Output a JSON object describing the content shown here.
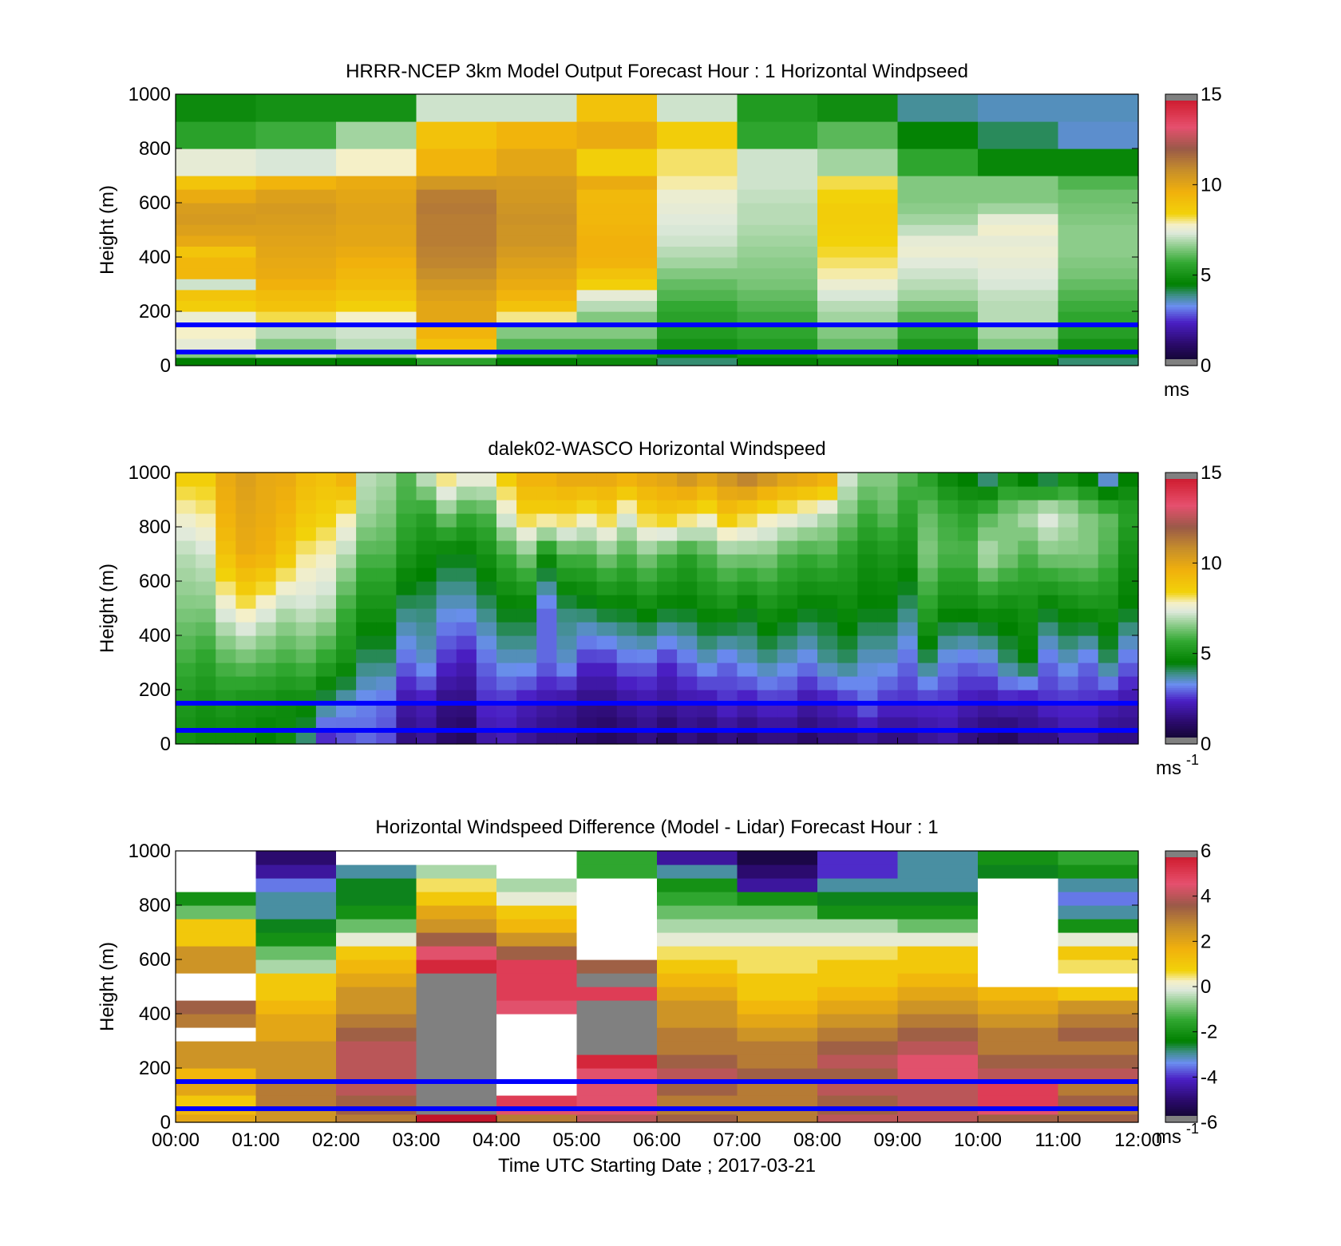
{
  "figure": {
    "x_tick_labels": [
      "00:00",
      "01:00",
      "02:00",
      "03:00",
      "04:00",
      "05:00",
      "06:00",
      "07:00",
      "08:00",
      "09:00",
      "10:00",
      "11:00",
      "12:00"
    ],
    "x_label": "Time UTC  Starting Date ; 2017-03-21"
  },
  "chart_data": [
    {
      "type": "heatmap",
      "title": "HRRR-NCEP 3km Model Output   Forecast Hour : 1 Horizontal Windpseed",
      "ylabel": "Height (m)",
      "ylim": [
        0,
        1000
      ],
      "yticks": [
        0,
        200,
        400,
        600,
        800,
        1000
      ],
      "colorbar": {
        "range": [
          0,
          15
        ],
        "ticks": [
          0,
          5,
          10,
          15
        ],
        "unit": "ms",
        "exponent": ""
      },
      "reference_lines_m": [
        150,
        50
      ],
      "time_start": "00:00",
      "time_step_hours": 1,
      "level_tops_m": [
        30,
        60,
        100,
        150,
        200,
        240,
        280,
        320,
        360,
        400,
        440,
        480,
        520,
        560,
        600,
        650,
        700,
        800,
        900,
        1000
      ],
      "values": [
        [
          4.5,
          6.5,
          7.5,
          7.8,
          7.6,
          8.6,
          8.9,
          7.2,
          9.4,
          9.4,
          8.9,
          9.9,
          10.2,
          10.4,
          10.3,
          9.8,
          8.9,
          7.5,
          5.5,
          4.8
        ],
        [
          4.5,
          7.0,
          6.5,
          7.0,
          8.2,
          9.0,
          9.2,
          9.6,
          9.8,
          9.9,
          10.0,
          10.1,
          10.2,
          10.3,
          10.4,
          10.2,
          9.5,
          7.3,
          5.8,
          5.0
        ],
        [
          4.5,
          6.5,
          7.0,
          7.2,
          7.8,
          8.5,
          8.9,
          9.2,
          9.4,
          9.6,
          9.8,
          10.0,
          10.0,
          10.1,
          10.1,
          10.0,
          9.8,
          7.8,
          6.8,
          5.0
        ],
        [
          5.5,
          7.5,
          9.0,
          9.5,
          10.0,
          10.0,
          10.2,
          10.5,
          10.8,
          11.0,
          11.1,
          11.2,
          11.2,
          11.2,
          11.3,
          11.2,
          10.5,
          9.5,
          9.0,
          7.2
        ],
        [
          4.5,
          6.0,
          6.0,
          6.5,
          8.0,
          9.0,
          9.5,
          9.8,
          10.0,
          10.2,
          10.4,
          10.6,
          10.6,
          10.7,
          10.6,
          10.5,
          10.4,
          10.0,
          9.5,
          7.2
        ],
        [
          4.8,
          5.5,
          6.0,
          6.5,
          6.5,
          7.0,
          7.5,
          8.5,
          9.0,
          9.5,
          9.6,
          9.6,
          9.5,
          9.4,
          9.4,
          9.3,
          9.8,
          8.5,
          9.8,
          9.0
        ],
        [
          4.0,
          4.6,
          5.0,
          5.3,
          5.5,
          5.7,
          6.0,
          6.2,
          6.5,
          6.8,
          7.0,
          7.2,
          7.3,
          7.4,
          7.5,
          7.6,
          7.9,
          8.1,
          8.6,
          7.2
        ],
        [
          4.6,
          5.0,
          5.3,
          5.6,
          5.8,
          6.0,
          6.2,
          6.4,
          6.5,
          6.6,
          6.7,
          6.8,
          6.9,
          7.0,
          7.0,
          7.1,
          7.2,
          7.2,
          5.6,
          5.3
        ],
        [
          4.8,
          5.5,
          6.2,
          6.5,
          6.8,
          7.0,
          7.3,
          7.6,
          7.9,
          8.1,
          8.3,
          8.4,
          8.5,
          8.6,
          8.6,
          8.4,
          8.2,
          6.8,
          6.1,
          4.9
        ],
        [
          4.5,
          4.8,
          5.2,
          5.6,
          6.0,
          6.4,
          6.8,
          7.0,
          7.2,
          7.4,
          7.6,
          7.5,
          7.1,
          6.8,
          6.6,
          6.5,
          6.5,
          5.6,
          4.6,
          3.8
        ],
        [
          4.5,
          5.0,
          6.5,
          6.8,
          7.0,
          7.0,
          7.1,
          7.3,
          7.4,
          7.5,
          7.6,
          7.5,
          7.7,
          7.5,
          6.8,
          6.5,
          6.5,
          4.7,
          4.1,
          3.6
        ],
        [
          4.0,
          4.6,
          5.0,
          5.4,
          5.6,
          5.8,
          6.0,
          6.2,
          6.4,
          6.5,
          6.6,
          6.6,
          6.6,
          6.5,
          6.4,
          6.3,
          6.0,
          4.7,
          3.5,
          3.6
        ]
      ]
    },
    {
      "type": "heatmap",
      "title": "dalek02-WASCO  Horizontal Windspeed",
      "ylabel": "Height (m)",
      "ylim": [
        0,
        1000
      ],
      "yticks": [
        0,
        200,
        400,
        600,
        800,
        1000
      ],
      "colorbar": {
        "range": [
          0,
          15
        ],
        "ticks": [
          0,
          5,
          10,
          15
        ],
        "unit": "ms",
        "exponent": "-1"
      },
      "reference_lines_m": [
        150,
        50
      ],
      "time_start": "00:00",
      "time_step_hours": 0.25,
      "level_step_m": 50,
      "columns_profile": "piecewise-linear profiles by height: speed at 25, 150, 300, 500, 700, 850, 975 m",
      "profiles": [
        [
          5.0,
          5.2,
          5.8,
          6.5,
          7.0,
          7.8,
          8.5
        ],
        [
          4.8,
          5.0,
          5.5,
          6.5,
          7.2,
          8.0,
          8.5
        ],
        [
          4.8,
          5.2,
          6.0,
          7.5,
          9.0,
          9.6,
          9.8
        ],
        [
          4.8,
          5.0,
          6.2,
          8.0,
          9.8,
          10.0,
          10.2
        ],
        [
          4.5,
          5.0,
          6.0,
          7.5,
          9.6,
          9.8,
          9.9
        ],
        [
          4.8,
          4.8,
          5.8,
          7.0,
          8.8,
          9.5,
          9.8
        ],
        [
          4.0,
          4.8,
          6.0,
          7.2,
          8.0,
          8.8,
          9.2
        ],
        [
          2.5,
          4.0,
          5.5,
          7.0,
          7.8,
          8.5,
          9.0
        ],
        [
          2.8,
          3.5,
          5.0,
          5.8,
          7.0,
          8.0,
          9.5
        ],
        [
          3.0,
          3.2,
          4.0,
          5.0,
          6.0,
          6.8,
          7.0
        ],
        [
          2.8,
          3.0,
          4.0,
          5.0,
          6.0,
          6.5,
          6.8
        ],
        [
          1.5,
          2.0,
          3.0,
          4.0,
          5.2,
          5.8,
          6.0
        ],
        [
          1.8,
          2.2,
          3.5,
          4.0,
          4.8,
          5.5,
          7.0
        ],
        [
          1.2,
          1.5,
          2.5,
          3.5,
          4.5,
          6.5,
          8.0
        ],
        [
          1.0,
          1.5,
          2.2,
          3.5,
          4.5,
          5.8,
          7.5
        ],
        [
          2.0,
          2.5,
          3.0,
          4.0,
          5.0,
          6.0,
          7.5
        ],
        [
          2.2,
          2.5,
          3.5,
          4.5,
          5.8,
          7.5,
          8.5
        ],
        [
          1.8,
          2.2,
          3.5,
          4.5,
          6.5,
          8.5,
          9.5
        ],
        [
          1.5,
          2.0,
          3.0,
          3.0,
          5.0,
          8.5,
          9.5
        ],
        [
          1.5,
          1.8,
          3.5,
          4.0,
          6.0,
          8.5,
          9.8
        ],
        [
          1.2,
          1.5,
          2.5,
          4.2,
          6.0,
          8.0,
          9.8
        ],
        [
          1.0,
          1.5,
          2.5,
          4.5,
          6.5,
          8.5,
          9.8
        ],
        [
          1.2,
          1.8,
          3.0,
          4.5,
          6.0,
          7.5,
          9.5
        ],
        [
          1.5,
          2.0,
          3.0,
          4.8,
          6.5,
          8.5,
          9.8
        ],
        [
          1.0,
          1.8,
          2.5,
          4.5,
          6.0,
          8.8,
          10.0
        ],
        [
          1.5,
          2.0,
          3.0,
          4.5,
          5.5,
          8.5,
          10.5
        ],
        [
          1.2,
          2.0,
          3.5,
          4.8,
          6.0,
          8.0,
          10.0
        ],
        [
          1.5,
          2.5,
          3.0,
          5.0,
          6.5,
          9.0,
          10.5
        ],
        [
          1.2,
          2.2,
          3.5,
          4.5,
          6.5,
          8.5,
          11.0
        ],
        [
          1.5,
          2.5,
          3.8,
          5.0,
          6.5,
          8.0,
          10.5
        ],
        [
          1.5,
          2.5,
          3.5,
          4.8,
          6.0,
          7.8,
          10.0
        ],
        [
          1.2,
          2.0,
          3.2,
          4.5,
          5.8,
          7.5,
          9.8
        ],
        [
          1.5,
          2.2,
          3.8,
          4.5,
          6.0,
          7.0,
          9.5
        ],
        [
          1.5,
          2.5,
          4.0,
          4.8,
          5.5,
          6.5,
          7.2
        ],
        [
          1.8,
          3.0,
          3.5,
          4.5,
          5.0,
          5.8,
          6.5
        ],
        [
          1.5,
          2.5,
          3.5,
          4.5,
          5.2,
          6.2,
          6.5
        ],
        [
          1.5,
          2.5,
          3.0,
          4.0,
          5.0,
          5.5,
          6.0
        ],
        [
          1.8,
          2.5,
          4.0,
          5.5,
          6.5,
          6.2,
          5.5
        ],
        [
          2.0,
          2.5,
          3.2,
          4.8,
          6.0,
          5.8,
          4.8
        ],
        [
          1.5,
          2.2,
          3.0,
          4.8,
          6.0,
          5.5,
          4.5
        ],
        [
          1.2,
          2.0,
          3.2,
          5.0,
          7.0,
          6.0,
          4.0
        ],
        [
          1.0,
          2.2,
          4.0,
          4.8,
          6.5,
          6.5,
          5.0
        ],
        [
          1.5,
          2.0,
          4.5,
          5.0,
          6.0,
          7.0,
          4.5
        ],
        [
          1.5,
          2.5,
          3.0,
          4.5,
          6.5,
          7.5,
          4.2
        ],
        [
          2.0,
          2.5,
          3.5,
          4.8,
          6.5,
          7.0,
          5.0
        ],
        [
          2.0,
          2.5,
          3.0,
          5.0,
          6.5,
          6.5,
          4.5
        ],
        [
          1.5,
          2.2,
          4.0,
          5.0,
          6.0,
          6.2,
          3.5
        ],
        [
          1.5,
          2.0,
          3.0,
          4.5,
          5.0,
          5.5,
          4.5
        ]
      ],
      "gaps_blank_m": [
        {
          "time": "00:00",
          "heights": [
            760,
            640,
            560
          ]
        },
        {
          "time": "07:30",
          "heights": [
            780,
            660
          ]
        },
        {
          "time": "10:15",
          "heights": [
            820,
            720,
            560
          ]
        }
      ]
    },
    {
      "type": "heatmap",
      "title": "Horizontal Windspeed Difference (Model - Lidar) Forecast Hour : 1",
      "ylabel": "Height (m)",
      "ylim": [
        0,
        1000
      ],
      "yticks": [
        0,
        200,
        400,
        600,
        800,
        1000
      ],
      "colorbar": {
        "range": [
          -6,
          6
        ],
        "ticks": [
          -6,
          -4,
          -2,
          0,
          2,
          4,
          6
        ],
        "unit": "ms",
        "exponent": "-1"
      },
      "reference_lines_m": [
        150,
        50
      ],
      "time_start": "00:00",
      "time_step_hours": 1,
      "level_tops_m": [
        30,
        60,
        100,
        150,
        200,
        250,
        300,
        350,
        400,
        450,
        500,
        550,
        600,
        650,
        700,
        750,
        800,
        850,
        900,
        950,
        1000
      ],
      "values": [
        [
          2.0,
          1.5,
          1.0,
          2.0,
          1.5,
          2.5,
          2.5,
          null,
          3.0,
          3.5,
          null,
          null,
          2.5,
          2.5,
          1.0,
          1.0,
          -1.0,
          -2.0,
          null,
          null,
          null
        ],
        [
          2.5,
          2.5,
          3.0,
          3.0,
          2.5,
          2.5,
          2.5,
          2.0,
          2.0,
          1.5,
          1.0,
          1.0,
          -0.5,
          -1.0,
          -2.0,
          -2.5,
          -3.0,
          -3.0,
          -3.5,
          -4.5,
          -5.0
        ],
        [
          3.0,
          3.5,
          3.5,
          4.0,
          4.0,
          4.0,
          4.0,
          3.5,
          3.0,
          2.5,
          2.5,
          2.0,
          1.5,
          1.0,
          0.0,
          -1.0,
          -2.0,
          -2.5,
          -2.5,
          -3.0,
          null
        ],
        [
          6.0,
          null,
          null,
          null,
          null,
          null,
          null,
          null,
          null,
          null,
          null,
          null,
          5.5,
          4.5,
          3.5,
          2.5,
          2.0,
          1.0,
          0.5,
          -0.5,
          null
        ],
        [
          3.0,
          4.5,
          5.0,
          null,
          null,
          null,
          null,
          null,
          null,
          4.5,
          5.0,
          5.0,
          5.0,
          3.5,
          2.5,
          1.5,
          1.0,
          0.0,
          -0.5,
          null,
          null
        ],
        [
          4.0,
          4.5,
          4.5,
          4.5,
          4.5,
          5.5,
          null,
          null,
          null,
          null,
          5.0,
          null,
          3.5,
          null,
          null,
          null,
          null,
          null,
          null,
          -1.5,
          -1.5
        ],
        [
          3.5,
          3.0,
          3.0,
          3.5,
          4.0,
          3.5,
          3.0,
          3.0,
          2.5,
          2.5,
          2.0,
          1.5,
          1.0,
          0.5,
          0.0,
          -0.5,
          -1.0,
          -1.5,
          -2.0,
          -3.0,
          -4.5
        ],
        [
          3.0,
          3.0,
          3.0,
          3.0,
          3.5,
          3.0,
          3.0,
          2.5,
          2.0,
          1.5,
          1.0,
          1.0,
          0.5,
          0.5,
          0.0,
          -0.5,
          -1.0,
          -2.0,
          -4.5,
          -5.0,
          -5.5
        ],
        [
          4.0,
          3.5,
          3.5,
          4.0,
          3.5,
          4.0,
          3.5,
          3.0,
          2.5,
          2.0,
          1.5,
          1.0,
          1.0,
          0.5,
          0.0,
          -0.5,
          -2.0,
          -2.5,
          -3.0,
          -4.0,
          -4.0
        ],
        [
          4.0,
          4.0,
          4.0,
          4.0,
          4.5,
          4.5,
          4.0,
          3.5,
          3.0,
          2.5,
          2.0,
          1.5,
          1.0,
          1.0,
          0.0,
          -1.0,
          -2.0,
          -2.5,
          -3.0,
          -3.0,
          -3.0
        ],
        [
          3.5,
          4.5,
          5.0,
          5.0,
          4.0,
          3.5,
          3.0,
          3.0,
          2.5,
          2.0,
          1.5,
          null,
          null,
          null,
          null,
          null,
          null,
          null,
          null,
          -2.5,
          -2.0
        ],
        [
          3.5,
          3.0,
          3.5,
          3.0,
          4.0,
          3.5,
          3.0,
          3.5,
          3.0,
          2.5,
          1.0,
          null,
          0.5,
          1.0,
          0.0,
          -2.0,
          -3.0,
          -3.5,
          -3.0,
          -2.0,
          -1.5
        ]
      ]
    }
  ]
}
